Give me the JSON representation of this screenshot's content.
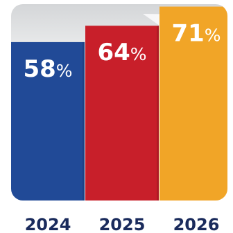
{
  "chart_data": {
    "type": "bar",
    "categories": [
      "2024",
      "2025",
      "2026"
    ],
    "values": [
      58,
      64,
      71
    ],
    "value_suffix": "%",
    "ylim": [
      0,
      100
    ],
    "grid": false,
    "legend": "none"
  },
  "colors": {
    "panel": "#ebeced",
    "panel_top": "#d6d8da",
    "category_label": "#1a2b5c",
    "value_label": "#ffffff",
    "bars": [
      "#214a97",
      "#c81f2a",
      "#f1a527"
    ]
  }
}
